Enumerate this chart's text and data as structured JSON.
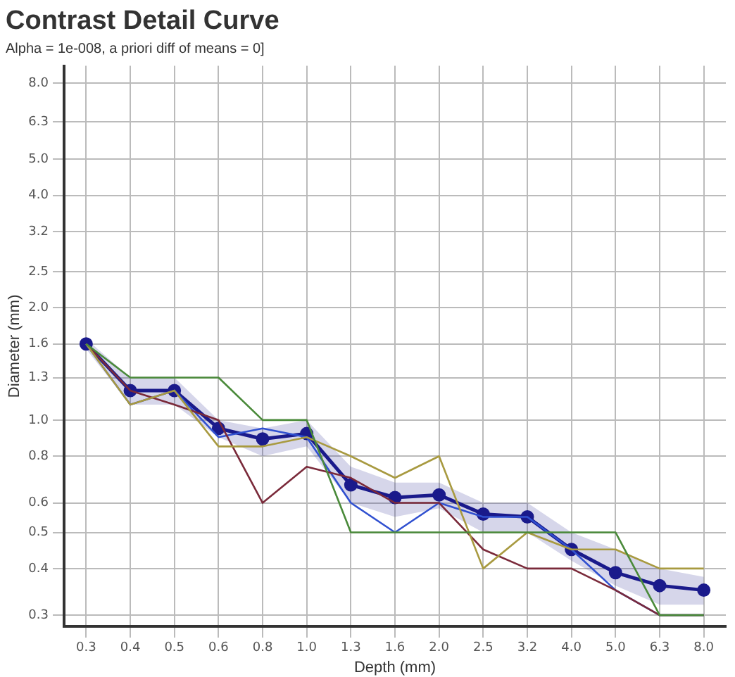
{
  "chart_data": {
    "type": "line",
    "title": "Contrast Detail Curve",
    "subtitle": "Alpha = 1e-008, a priori diff of means = 0]",
    "xlabel": "Depth (mm)",
    "ylabel": "Diameter (mm)",
    "categories": [
      "0.3",
      "0.4",
      "0.5",
      "0.6",
      "0.8",
      "1.0",
      "1.3",
      "1.6",
      "2.0",
      "2.5",
      "3.2",
      "4.0",
      "5.0",
      "6.3",
      "8.0"
    ],
    "series": [
      {
        "color": "#4a8a3a",
        "marker": "none",
        "values": [
          1.6,
          1.3,
          1.3,
          1.3,
          1.0,
          1.0,
          0.5,
          0.5,
          0.5,
          0.5,
          0.5,
          0.5,
          0.5,
          0.3,
          0.3
        ]
      },
      {
        "color": "#a89a40",
        "marker": "none",
        "values": [
          1.6,
          1.1,
          1.2,
          0.85,
          0.85,
          0.9,
          0.8,
          0.7,
          0.8,
          0.4,
          0.5,
          0.45,
          0.45,
          0.4,
          0.4
        ]
      },
      {
        "color": "#7a2a3a",
        "marker": "none",
        "values": [
          1.6,
          1.2,
          1.1,
          1.0,
          0.6,
          0.75,
          0.7,
          0.6,
          0.6,
          0.45,
          0.4,
          0.4,
          0.35,
          0.3,
          0.3
        ]
      },
      {
        "color": "#3050d0",
        "marker": "none",
        "values": [
          1.6,
          1.1,
          1.2,
          0.9,
          0.95,
          0.9,
          0.6,
          0.5,
          0.6,
          0.55,
          0.55,
          0.45,
          0.35,
          0.3,
          0.3
        ]
      },
      {
        "color": "#1a1a8c",
        "marker": "circle",
        "values": [
          1.6,
          1.2,
          1.2,
          0.95,
          0.89,
          0.92,
          0.67,
          0.62,
          0.63,
          0.56,
          0.55,
          0.45,
          0.39,
          0.36,
          0.35
        ],
        "lower": [
          1.55,
          1.1,
          1.1,
          0.9,
          0.8,
          0.85,
          0.6,
          0.55,
          0.58,
          0.5,
          0.5,
          0.42,
          0.36,
          0.32,
          0.32
        ],
        "upper": [
          1.65,
          1.3,
          1.3,
          1.0,
          0.95,
          1.0,
          0.75,
          0.68,
          0.68,
          0.6,
          0.6,
          0.5,
          0.45,
          0.4,
          0.38
        ]
      }
    ],
    "log": "y",
    "ylim": [
      0.28,
      8.9
    ],
    "yticks": [
      0.3,
      0.4,
      0.5,
      0.6,
      0.8,
      {
        "value": 1,
        "label": "1.0"
      },
      1.3,
      1.6,
      {
        "value": 2,
        "label": "2.0"
      },
      2.5,
      3.2,
      {
        "value": 4,
        "label": "4.0"
      },
      {
        "value": 5,
        "label": "5.0"
      },
      6.3,
      {
        "value": 8,
        "label": "8.0"
      }
    ],
    "grid": true,
    "line_style": "solid",
    "legend": false
  }
}
